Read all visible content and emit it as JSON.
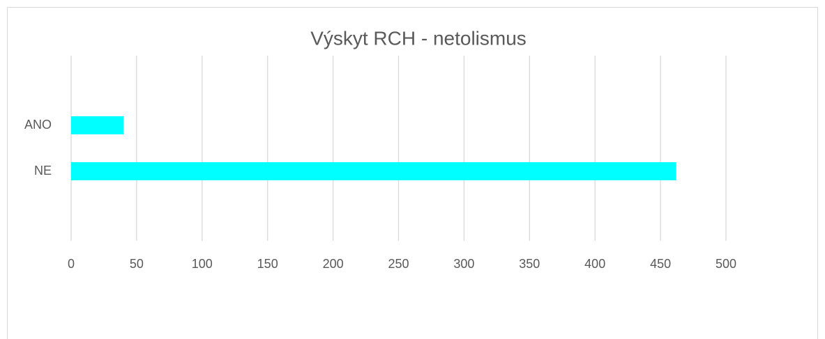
{
  "chart_data": {
    "type": "bar",
    "orientation": "horizontal",
    "title": "Výskyt RCH - netolismus",
    "categories": [
      "ANO",
      "NE"
    ],
    "values": [
      40,
      462
    ],
    "color": "#00ffff",
    "xlim": [
      0,
      500
    ],
    "xticks": [
      0,
      50,
      100,
      150,
      200,
      250,
      300,
      350,
      400,
      450,
      500
    ],
    "grid": true
  }
}
